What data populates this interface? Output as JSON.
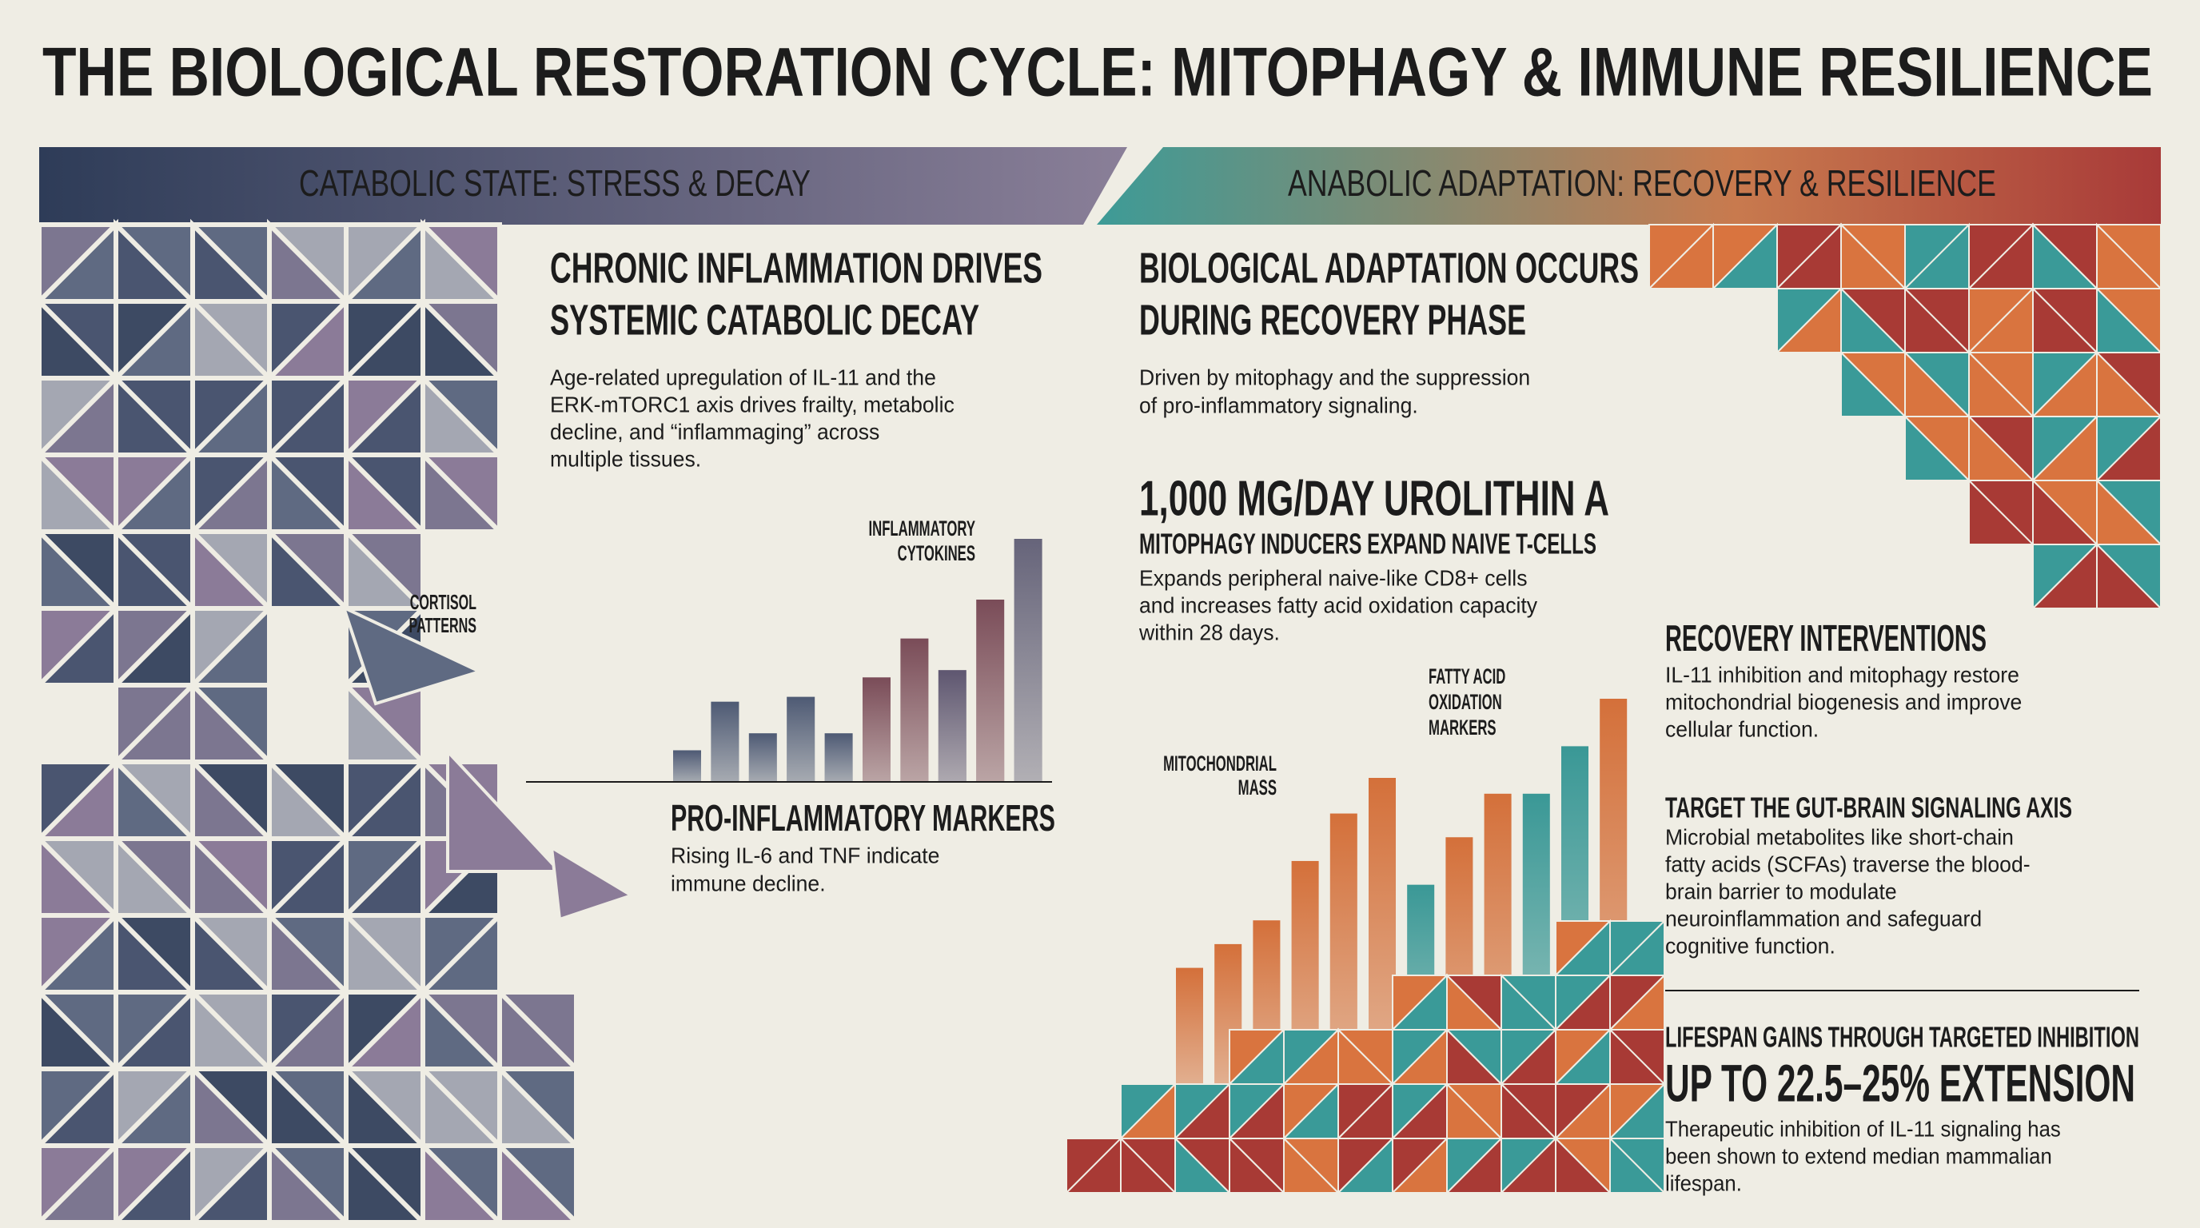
{
  "title": "THE BIOLOGICAL RESTORATION CYCLE: MITOPHAGY & IMMUNE RESILIENCE",
  "left_panel": {
    "banner": "CATABOLIC STATE: STRESS & DECAY",
    "heading": [
      "CHRONIC INFLAMMATION DRIVES",
      "SYSTEMIC CATABOLIC DECAY"
    ],
    "body": [
      "Age-related upregulation of IL-11 and the",
      "ERK-mTORC1 axis drives frailty, metabolic",
      "decline, and “inflammaging” across",
      "multiple tissues."
    ],
    "side_label": [
      "CORTISOL",
      "PATTERNS"
    ],
    "chart": {
      "type": "bar",
      "label": [
        "INFLAMMATORY",
        "CYTOKINES"
      ],
      "values": [
        13,
        33,
        20,
        35,
        20,
        43,
        59,
        46,
        75,
        100
      ],
      "colors": [
        "#4e5a74",
        "#4e5a74",
        "#4e5a74",
        "#4e5a74",
        "#4e5a74",
        "#7a4c58",
        "#7a4c58",
        "#5e5670",
        "#7a4c58",
        "#66647a"
      ]
    },
    "markers": {
      "title": "PRO-INFLAMMATORY MARKERS",
      "body": [
        "Rising IL-6 and TNF indicate",
        "immune decline."
      ]
    }
  },
  "center_panel": {
    "banner": "ANABOLIC ADAPTATION: RECOVERY & RESILIENCE",
    "heading": [
      "BIOLOGICAL ADAPTATION OCCURS",
      "DURING RECOVERY PHASE"
    ],
    "body": [
      "Driven by mitophagy and the suppression",
      "of pro-inflammatory signaling."
    ],
    "dose": {
      "title": "1,000 MG/DAY UROLITHIN A",
      "subtitle": "MITOPHAGY INDUCERS EXPAND NAIVE T-CELLS",
      "body": [
        "Expands peripheral naive-like CD8+ cells",
        "and increases fatty acid oxidation capacity",
        "within 28 days."
      ]
    },
    "chart": {
      "type": "bar",
      "left_label": [
        "MITOCHONDRIAL",
        "MASS"
      ],
      "right_label": [
        "FATTY ACID",
        "OXIDATION",
        "MARKERS"
      ],
      "values": [
        32,
        38,
        44,
        59,
        71,
        80,
        53,
        65,
        76,
        76,
        88,
        100
      ],
      "colors": [
        "#d4703a",
        "#d4703a",
        "#d4703a",
        "#d4703a",
        "#d4703a",
        "#d4703a",
        "#3a9896",
        "#d4703a",
        "#d4703a",
        "#3a9896",
        "#3a9896",
        "#d4703a"
      ]
    }
  },
  "right_panel": {
    "sections": [
      {
        "title": "RECOVERY INTERVENTIONS",
        "body": [
          "IL-11 inhibition and mitophagy restore",
          "mitochondrial biogenesis and improve",
          "cellular function."
        ]
      },
      {
        "title": "TARGET THE GUT-BRAIN SIGNALING AXIS",
        "body": [
          "Microbial metabolites like short-chain",
          "fatty acids (SCFAs) traverse the blood-",
          "brain barrier to modulate",
          "neuroinflammation and safeguard",
          "cognitive function."
        ]
      }
    ],
    "lifespan": {
      "kicker": "LIFESPAN GAINS THROUGH TARGETED INHIBITION",
      "title": "UP TO 22.5–25% EXTENSION",
      "body": [
        "Therapeutic inhibition of IL-11 signaling has",
        "been shown to extend median mammalian",
        "lifespan."
      ]
    }
  }
}
